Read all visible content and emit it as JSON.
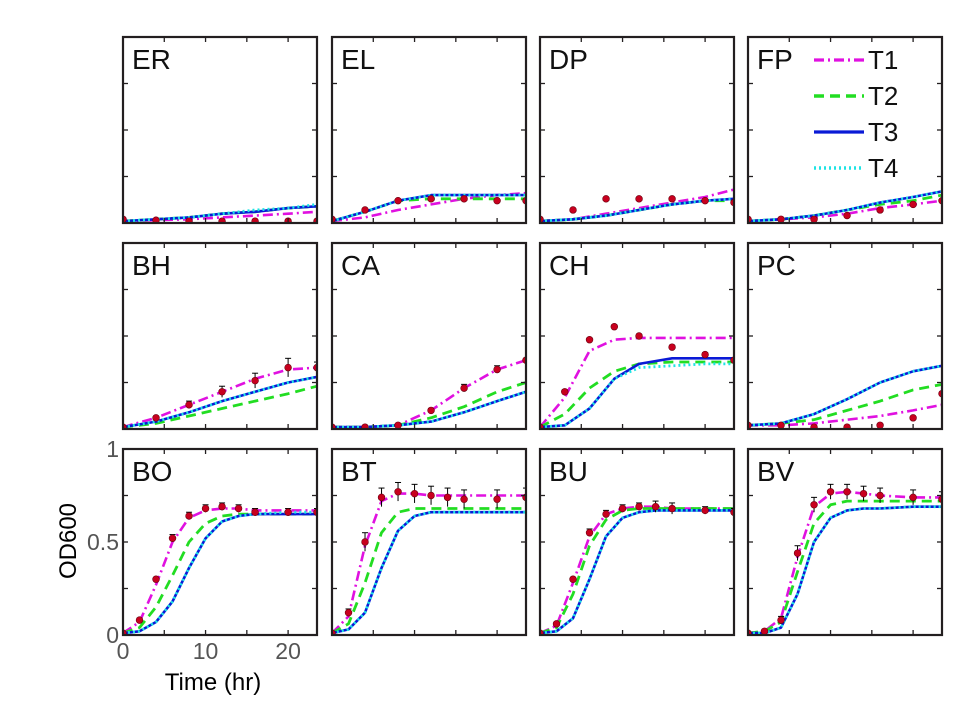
{
  "figure": {
    "ylabel": "OD600",
    "xlabel": "Time (hr)",
    "x_ticks": [
      "0",
      "10",
      "20"
    ],
    "y_ticks": [
      "0",
      "0.5",
      "1"
    ],
    "xlim": [
      0,
      23.5
    ],
    "ylim": [
      0,
      1
    ],
    "grid": false,
    "legend_position": "top-right of panel FP"
  },
  "legend": [
    {
      "label": "T1",
      "color": "#e011e0",
      "style": "dash-dot"
    },
    {
      "label": "T2",
      "color": "#22dd22",
      "style": "dashed"
    },
    {
      "label": "T3",
      "color": "#0a1ad6",
      "style": "solid"
    },
    {
      "label": "T4",
      "color": "#1ee4e4",
      "style": "dotted"
    }
  ],
  "observed_style": {
    "marker_color": "#c8001e",
    "errorbar_color": "#000000"
  },
  "chart_data": [
    {
      "type": "line",
      "panel": "ER",
      "x": [
        0,
        4,
        8,
        12,
        16,
        20,
        23.5
      ],
      "observed": [
        0.02,
        0.015,
        0.01,
        0.01,
        0.01,
        0.01,
        0.01
      ],
      "error": [
        0,
        0,
        0,
        0,
        0,
        0,
        0
      ],
      "series": [
        {
          "name": "T1",
          "values": [
            0.01,
            0.015,
            0.02,
            0.03,
            0.04,
            0.05,
            0.06
          ]
        },
        {
          "name": "T2",
          "values": [
            0.01,
            0.02,
            0.03,
            0.05,
            0.06,
            0.08,
            0.09
          ]
        },
        {
          "name": "T3",
          "values": [
            0.01,
            0.02,
            0.03,
            0.05,
            0.06,
            0.08,
            0.09
          ]
        },
        {
          "name": "T4",
          "values": [
            0.01,
            0.02,
            0.03,
            0.05,
            0.07,
            0.08,
            0.1
          ]
        }
      ]
    },
    {
      "type": "line",
      "panel": "EL",
      "x": [
        0,
        4,
        8,
        12,
        16,
        20,
        23.5
      ],
      "observed": [
        0.02,
        0.07,
        0.12,
        0.13,
        0.13,
        0.12,
        0.12
      ],
      "error": [
        0,
        0,
        0,
        0,
        0,
        0,
        0
      ],
      "series": [
        {
          "name": "T1",
          "values": [
            0.01,
            0.03,
            0.07,
            0.1,
            0.13,
            0.15,
            0.16
          ]
        },
        {
          "name": "T2",
          "values": [
            0.01,
            0.06,
            0.12,
            0.13,
            0.13,
            0.13,
            0.13
          ]
        },
        {
          "name": "T3",
          "values": [
            0.01,
            0.06,
            0.12,
            0.15,
            0.15,
            0.15,
            0.15
          ]
        },
        {
          "name": "T4",
          "values": [
            0.01,
            0.06,
            0.12,
            0.15,
            0.15,
            0.15,
            0.15
          ]
        }
      ]
    },
    {
      "type": "line",
      "panel": "DP",
      "x": [
        0,
        4,
        8,
        12,
        16,
        20,
        23.5
      ],
      "observed": [
        0.02,
        0.07,
        0.13,
        0.13,
        0.13,
        0.12,
        0.11
      ],
      "error": [
        0,
        0,
        0,
        0,
        0,
        0,
        0
      ],
      "series": [
        {
          "name": "T1",
          "values": [
            0.01,
            0.02,
            0.05,
            0.08,
            0.11,
            0.14,
            0.18
          ]
        },
        {
          "name": "T2",
          "values": [
            0.01,
            0.02,
            0.04,
            0.07,
            0.1,
            0.12,
            0.12
          ]
        },
        {
          "name": "T3",
          "values": [
            0.01,
            0.02,
            0.04,
            0.07,
            0.1,
            0.12,
            0.13
          ]
        },
        {
          "name": "T4",
          "values": [
            0.01,
            0.02,
            0.04,
            0.07,
            0.1,
            0.12,
            0.13
          ]
        }
      ]
    },
    {
      "type": "line",
      "panel": "FP",
      "x": [
        0,
        4,
        8,
        12,
        16,
        20,
        23.5
      ],
      "observed": [
        0.02,
        0.02,
        0.02,
        0.04,
        0.07,
        0.1,
        0.12
      ],
      "error": [
        0,
        0,
        0,
        0,
        0,
        0,
        0
      ],
      "series": [
        {
          "name": "T1",
          "values": [
            0.01,
            0.02,
            0.03,
            0.05,
            0.08,
            0.1,
            0.12
          ]
        },
        {
          "name": "T2",
          "values": [
            0.01,
            0.02,
            0.04,
            0.07,
            0.1,
            0.12,
            0.15
          ]
        },
        {
          "name": "T3",
          "values": [
            0.01,
            0.02,
            0.04,
            0.07,
            0.11,
            0.14,
            0.17
          ]
        },
        {
          "name": "T4",
          "values": [
            0.01,
            0.02,
            0.04,
            0.07,
            0.11,
            0.14,
            0.17
          ]
        }
      ]
    },
    {
      "type": "line",
      "panel": "BH",
      "x": [
        0,
        4,
        8,
        12,
        16,
        20,
        23.5
      ],
      "observed": [
        0.01,
        0.06,
        0.13,
        0.2,
        0.26,
        0.33,
        0.33
      ],
      "error": [
        0,
        0.01,
        0.02,
        0.03,
        0.04,
        0.05,
        0.03
      ],
      "series": [
        {
          "name": "T1",
          "values": [
            0.01,
            0.06,
            0.13,
            0.2,
            0.27,
            0.32,
            0.33
          ]
        },
        {
          "name": "T2",
          "values": [
            0.01,
            0.03,
            0.07,
            0.11,
            0.15,
            0.19,
            0.23
          ]
        },
        {
          "name": "T3",
          "values": [
            0.01,
            0.04,
            0.09,
            0.15,
            0.2,
            0.25,
            0.28
          ]
        },
        {
          "name": "T4",
          "values": [
            0.01,
            0.04,
            0.09,
            0.15,
            0.2,
            0.25,
            0.28
          ]
        }
      ]
    },
    {
      "type": "line",
      "panel": "CA",
      "x": [
        0,
        4,
        8,
        12,
        16,
        20,
        23.5
      ],
      "observed": [
        0.01,
        0.01,
        0.02,
        0.1,
        0.22,
        0.32,
        0.37
      ],
      "error": [
        0,
        0,
        0,
        0.01,
        0.02,
        0.02,
        0.01
      ],
      "series": [
        {
          "name": "T1",
          "values": [
            0.01,
            0.01,
            0.02,
            0.1,
            0.22,
            0.32,
            0.37
          ]
        },
        {
          "name": "T2",
          "values": [
            0.01,
            0.01,
            0.02,
            0.06,
            0.12,
            0.2,
            0.25
          ]
        },
        {
          "name": "T3",
          "values": [
            0.01,
            0.01,
            0.02,
            0.04,
            0.09,
            0.15,
            0.2
          ]
        },
        {
          "name": "T4",
          "values": [
            0.01,
            0.01,
            0.02,
            0.04,
            0.09,
            0.15,
            0.2
          ]
        }
      ]
    },
    {
      "type": "line",
      "panel": "CH",
      "x": [
        0,
        3,
        6,
        9,
        12,
        16,
        20,
        23.5
      ],
      "observed": [
        0.01,
        0.2,
        0.48,
        0.55,
        0.5,
        0.44,
        0.4,
        0.37
      ],
      "error": [
        0,
        0.01,
        0.01,
        0.01,
        0.01,
        0.01,
        0.01,
        0.01
      ],
      "series": [
        {
          "name": "T1",
          "values": [
            0.01,
            0.17,
            0.42,
            0.48,
            0.49,
            0.49,
            0.49,
            0.49
          ]
        },
        {
          "name": "T2",
          "values": [
            0.01,
            0.08,
            0.22,
            0.31,
            0.35,
            0.36,
            0.36,
            0.36
          ]
        },
        {
          "name": "T3",
          "values": [
            0.01,
            0.02,
            0.11,
            0.27,
            0.35,
            0.38,
            0.38,
            0.38
          ]
        },
        {
          "name": "T4",
          "values": [
            0.01,
            0.02,
            0.11,
            0.27,
            0.33,
            0.34,
            0.35,
            0.35
          ]
        }
      ]
    },
    {
      "type": "line",
      "panel": "PC",
      "x": [
        0,
        4,
        8,
        12,
        16,
        20,
        23.5
      ],
      "observed": [
        0.02,
        0.02,
        0.01,
        0.01,
        0.02,
        0.06,
        0.19
      ],
      "error": [
        0,
        0,
        0,
        0,
        0,
        0,
        0
      ],
      "series": [
        {
          "name": "T1",
          "values": [
            0.02,
            0.02,
            0.03,
            0.05,
            0.07,
            0.1,
            0.13
          ]
        },
        {
          "name": "T2",
          "values": [
            0.02,
            0.03,
            0.05,
            0.1,
            0.15,
            0.21,
            0.24
          ]
        },
        {
          "name": "T3",
          "values": [
            0.02,
            0.03,
            0.08,
            0.16,
            0.25,
            0.31,
            0.34
          ]
        },
        {
          "name": "T4",
          "values": [
            0.02,
            0.03,
            0.08,
            0.16,
            0.25,
            0.31,
            0.34
          ]
        }
      ]
    },
    {
      "type": "line",
      "panel": "BO",
      "x": [
        0,
        2,
        4,
        6,
        8,
        10,
        12,
        14,
        16,
        20,
        23.5
      ],
      "observed": [
        0.01,
        0.08,
        0.3,
        0.52,
        0.64,
        0.68,
        0.69,
        0.68,
        0.66,
        0.66,
        0.66
      ],
      "error": [
        0,
        0.01,
        0.01,
        0.02,
        0.02,
        0.02,
        0.02,
        0.02,
        0.02,
        0.02,
        0.02
      ],
      "series": [
        {
          "name": "T1",
          "values": [
            0.01,
            0.07,
            0.27,
            0.5,
            0.63,
            0.67,
            0.68,
            0.68,
            0.67,
            0.67,
            0.67
          ]
        },
        {
          "name": "T2",
          "values": [
            0.01,
            0.04,
            0.15,
            0.32,
            0.5,
            0.6,
            0.64,
            0.65,
            0.65,
            0.65,
            0.65
          ]
        },
        {
          "name": "T3",
          "values": [
            0.01,
            0.02,
            0.07,
            0.18,
            0.36,
            0.52,
            0.61,
            0.64,
            0.65,
            0.65,
            0.65
          ]
        },
        {
          "name": "T4",
          "values": [
            0.01,
            0.02,
            0.07,
            0.18,
            0.36,
            0.52,
            0.61,
            0.64,
            0.65,
            0.66,
            0.66
          ]
        }
      ]
    },
    {
      "type": "line",
      "panel": "BT",
      "x": [
        0,
        2,
        4,
        6,
        8,
        10,
        12,
        14,
        16,
        20,
        23.5
      ],
      "observed": [
        0.01,
        0.12,
        0.5,
        0.74,
        0.77,
        0.76,
        0.75,
        0.74,
        0.73,
        0.73,
        0.74
      ],
      "error": [
        0,
        0.02,
        0.05,
        0.05,
        0.05,
        0.05,
        0.05,
        0.05,
        0.05,
        0.05,
        0.05
      ],
      "series": [
        {
          "name": "T1",
          "values": [
            0.01,
            0.1,
            0.48,
            0.72,
            0.76,
            0.76,
            0.75,
            0.75,
            0.75,
            0.75,
            0.75
          ]
        },
        {
          "name": "T2",
          "values": [
            0.01,
            0.06,
            0.28,
            0.55,
            0.66,
            0.68,
            0.68,
            0.68,
            0.68,
            0.68,
            0.68
          ]
        },
        {
          "name": "T3",
          "values": [
            0.01,
            0.03,
            0.12,
            0.36,
            0.56,
            0.64,
            0.66,
            0.66,
            0.66,
            0.66,
            0.66
          ]
        },
        {
          "name": "T4",
          "values": [
            0.01,
            0.03,
            0.12,
            0.36,
            0.56,
            0.64,
            0.66,
            0.66,
            0.66,
            0.66,
            0.66
          ]
        }
      ]
    },
    {
      "type": "line",
      "panel": "BU",
      "x": [
        0,
        2,
        4,
        6,
        8,
        10,
        12,
        14,
        16,
        20,
        23.5
      ],
      "observed": [
        0.01,
        0.06,
        0.3,
        0.55,
        0.65,
        0.68,
        0.69,
        0.69,
        0.68,
        0.67,
        0.66
      ],
      "error": [
        0,
        0.01,
        0.01,
        0.02,
        0.02,
        0.02,
        0.02,
        0.03,
        0.03,
        0.02,
        0.02
      ],
      "series": [
        {
          "name": "T1",
          "values": [
            0.01,
            0.05,
            0.28,
            0.53,
            0.65,
            0.68,
            0.69,
            0.69,
            0.68,
            0.68,
            0.68
          ]
        },
        {
          "name": "T2",
          "values": [
            0.01,
            0.04,
            0.22,
            0.48,
            0.62,
            0.67,
            0.68,
            0.68,
            0.68,
            0.68,
            0.68
          ]
        },
        {
          "name": "T3",
          "values": [
            0.01,
            0.02,
            0.09,
            0.3,
            0.53,
            0.63,
            0.66,
            0.67,
            0.67,
            0.67,
            0.67
          ]
        },
        {
          "name": "T4",
          "values": [
            0.01,
            0.02,
            0.09,
            0.3,
            0.53,
            0.63,
            0.66,
            0.67,
            0.67,
            0.67,
            0.67
          ]
        }
      ]
    },
    {
      "type": "line",
      "panel": "BV",
      "x": [
        0,
        2,
        4,
        6,
        8,
        10,
        12,
        14,
        16,
        20,
        23.5
      ],
      "observed": [
        0.01,
        0.02,
        0.08,
        0.44,
        0.7,
        0.77,
        0.77,
        0.76,
        0.75,
        0.74,
        0.73
      ],
      "error": [
        0,
        0.01,
        0.02,
        0.04,
        0.04,
        0.04,
        0.04,
        0.04,
        0.04,
        0.04,
        0.04
      ],
      "series": [
        {
          "name": "T1",
          "values": [
            0.01,
            0.02,
            0.09,
            0.42,
            0.69,
            0.76,
            0.77,
            0.76,
            0.75,
            0.74,
            0.74
          ]
        },
        {
          "name": "T2",
          "values": [
            0.01,
            0.02,
            0.07,
            0.34,
            0.6,
            0.7,
            0.72,
            0.72,
            0.72,
            0.72,
            0.72
          ]
        },
        {
          "name": "T3",
          "values": [
            0.01,
            0.01,
            0.04,
            0.22,
            0.5,
            0.63,
            0.67,
            0.68,
            0.68,
            0.69,
            0.69
          ]
        },
        {
          "name": "T4",
          "values": [
            0.01,
            0.01,
            0.04,
            0.22,
            0.5,
            0.63,
            0.67,
            0.68,
            0.68,
            0.69,
            0.69
          ]
        }
      ]
    }
  ]
}
